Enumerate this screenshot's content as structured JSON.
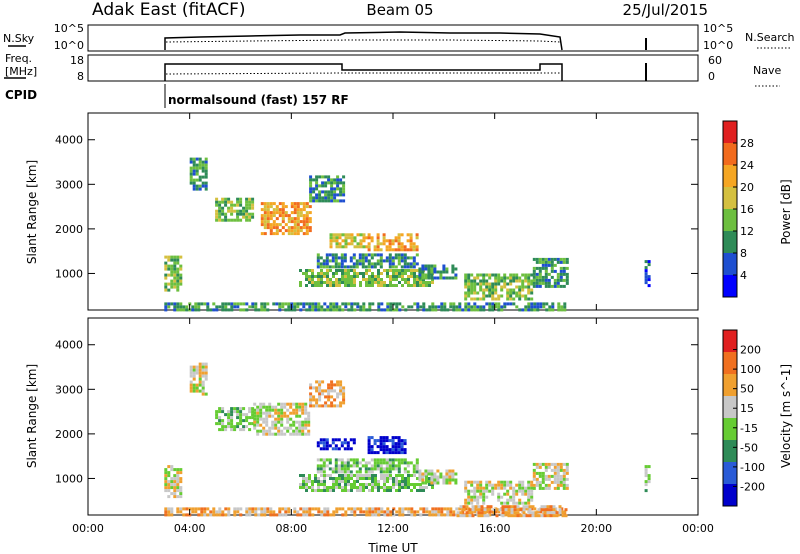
{
  "header": {
    "station": "Adak East (fitACF)",
    "beam": "Beam 05",
    "date": "25/Jul/2015"
  },
  "panels": {
    "nsky": {
      "label": "N.Sky",
      "ticks_left": [
        "10^5",
        "10^0"
      ],
      "ticks_right": [
        "10^5",
        "10^0"
      ],
      "right_label": "N.Search"
    },
    "freq": {
      "label_line1": "Freq.",
      "label_line2": "[MHz]",
      "ticks_left": [
        "18",
        "8"
      ],
      "ticks_right": [
        "60",
        "0"
      ],
      "right_label": "Nave"
    },
    "cpid": {
      "label": "CPID",
      "program": "normalsound (fast) 157 RF"
    }
  },
  "colors": {
    "power": [
      "#0000ff",
      "#1e4fd0",
      "#2e8b57",
      "#6dbf3f",
      "#d4c040",
      "#f5a623",
      "#f26b1d",
      "#e02020"
    ],
    "velocity": [
      "#0000cc",
      "#2a5bd7",
      "#2e8b57",
      "#66cc33",
      "#c8c8c8",
      "#f0a030",
      "#f07020",
      "#e02020"
    ],
    "ground_scatter": "#b0b0b0"
  },
  "chart_data": [
    {
      "type": "heatmap",
      "name": "power",
      "xlabel": "",
      "ylabel": "Slant Range [km]",
      "xlim": [
        0,
        24
      ],
      "ylim": [
        180,
        4600
      ],
      "y_ticks": [
        "4000",
        "3000",
        "2000",
        "1000"
      ],
      "colorbar_label": "Power [dB]",
      "colorbar_ticks": [
        "28",
        "24",
        "20",
        "16",
        "12",
        "8",
        "4"
      ],
      "regions": [
        {
          "t0": 3.0,
          "t1": 3.6,
          "r0": 600,
          "r1": 1400,
          "level": 3
        },
        {
          "t0": 4.0,
          "t1": 4.6,
          "r0": 2900,
          "r1": 3600,
          "level": 2
        },
        {
          "t0": 5.0,
          "t1": 6.5,
          "r0": 2200,
          "r1": 2700,
          "level": 3
        },
        {
          "t0": 6.8,
          "t1": 8.7,
          "r0": 1900,
          "r1": 2600,
          "level": 5
        },
        {
          "t0": 8.7,
          "t1": 10.0,
          "r0": 2600,
          "r1": 3200,
          "level": 2
        },
        {
          "t0": 9.5,
          "t1": 11.0,
          "r0": 1600,
          "r1": 1900,
          "level": 4
        },
        {
          "t0": 11.0,
          "t1": 13.0,
          "r0": 1500,
          "r1": 1900,
          "level": 5
        },
        {
          "t0": 9.0,
          "t1": 13.0,
          "r0": 1150,
          "r1": 1450,
          "level": 2
        },
        {
          "t0": 8.3,
          "t1": 13.5,
          "r0": 750,
          "r1": 1100,
          "level": 3
        },
        {
          "t0": 13.0,
          "t1": 14.5,
          "r0": 900,
          "r1": 1200,
          "level": 2
        },
        {
          "t0": 14.8,
          "t1": 17.5,
          "r0": 400,
          "r1": 1000,
          "level": 3
        },
        {
          "t0": 17.5,
          "t1": 18.8,
          "r0": 700,
          "r1": 1350,
          "level": 2
        },
        {
          "t0": 3.0,
          "t1": 18.8,
          "r0": 180,
          "r1": 350,
          "level": 2
        },
        {
          "t0": 21.9,
          "t1": 22.05,
          "r0": 700,
          "r1": 1300,
          "level": 1
        }
      ]
    },
    {
      "type": "heatmap",
      "name": "velocity",
      "xlabel": "Time UT",
      "ylabel": "Slant Range [km]",
      "xlim": [
        0,
        24
      ],
      "ylim": [
        180,
        4600
      ],
      "x_ticks": [
        "00:00",
        "04:00",
        "08:00",
        "12:00",
        "16:00",
        "20:00",
        "00:00"
      ],
      "y_ticks": [
        "4000",
        "3000",
        "2000",
        "1000"
      ],
      "colorbar_label": "Velocity [m s^-1]",
      "colorbar_ticks": [
        "200",
        "100",
        "50",
        "15",
        "-15",
        "-50",
        "-100",
        "-200"
      ],
      "regions": [
        {
          "t0": 3.0,
          "t1": 3.6,
          "r0": 600,
          "r1": 1300,
          "level": 4
        },
        {
          "t0": 4.0,
          "t1": 4.6,
          "r0": 2900,
          "r1": 3600,
          "level": 4
        },
        {
          "t0": 5.0,
          "t1": 6.5,
          "r0": 2100,
          "r1": 2600,
          "level": 3
        },
        {
          "t0": 6.5,
          "t1": 8.7,
          "r0": 2000,
          "r1": 2700,
          "level": 4
        },
        {
          "t0": 8.7,
          "t1": 10.0,
          "r0": 2600,
          "r1": 3200,
          "level": 5
        },
        {
          "t0": 9.0,
          "t1": 10.5,
          "r0": 1650,
          "r1": 1900,
          "level": 0
        },
        {
          "t0": 11.0,
          "t1": 12.5,
          "r0": 1550,
          "r1": 1950,
          "level": 0
        },
        {
          "t0": 9.0,
          "t1": 13.0,
          "r0": 1150,
          "r1": 1450,
          "level": 3
        },
        {
          "t0": 8.3,
          "t1": 13.5,
          "r0": 750,
          "r1": 1100,
          "level": 3
        },
        {
          "t0": 13.0,
          "t1": 14.5,
          "r0": 900,
          "r1": 1200,
          "level": 4
        },
        {
          "t0": 14.8,
          "t1": 17.5,
          "r0": 450,
          "r1": 950,
          "level": 4
        },
        {
          "t0": 17.5,
          "t1": 18.8,
          "r0": 800,
          "r1": 1350,
          "level": 4
        },
        {
          "t0": 3.0,
          "t1": 18.8,
          "r0": 180,
          "r1": 350,
          "level": 5
        },
        {
          "t0": 14.5,
          "t1": 18.8,
          "r0": 180,
          "r1": 400,
          "level": 5
        },
        {
          "t0": 21.9,
          "t1": 22.05,
          "r0": 700,
          "r1": 1300,
          "level": 3
        }
      ]
    }
  ]
}
